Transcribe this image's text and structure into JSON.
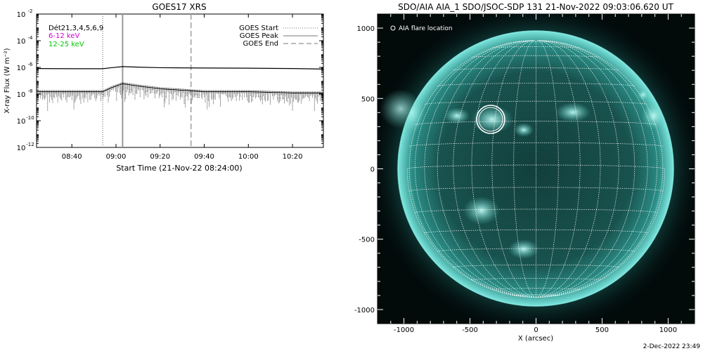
{
  "colors": {
    "background": "#ffffff",
    "plot_line": "#000000",
    "channel_6_12": "#d100d1",
    "channel_12_25": "#00c800",
    "solar_disk": "#1f6b66",
    "solar_active": "#9ff5ee",
    "aia_background": "#020a0a",
    "grid": "#ffffff"
  },
  "timestamp": "2-Dec-2022 23:49",
  "chart_data": [
    {
      "type": "line",
      "title": "GOES17 XRS",
      "xlabel": "Start Time (21-Nov-22 08:24:00)",
      "ylabel": "X-ray Flux (W m⁻²)",
      "x_start": "08:24",
      "x_end": "10:34",
      "x_ticks": [
        "08:40",
        "09:00",
        "09:20",
        "09:40",
        "10:00",
        "10:20"
      ],
      "y_scale": "log",
      "ylim": [
        1e-12,
        0.01
      ],
      "y_ticks": [
        {
          "label": "10",
          "exp": "-12",
          "value": -12
        },
        {
          "label": "10",
          "exp": "-10",
          "value": -10
        },
        {
          "label": "10",
          "exp": "-8",
          "value": -8
        },
        {
          "label": "10",
          "exp": "-6",
          "value": -6
        },
        {
          "label": "10",
          "exp": "-4",
          "value": -4
        },
        {
          "label": "10",
          "exp": "-2",
          "value": -2
        }
      ],
      "labels": {
        "detectors": "Dét21,3,4,5,6,9",
        "channel_low": "6-12 keV",
        "channel_high": "12-25 keV"
      },
      "legend": {
        "position": "top-right",
        "entries": [
          {
            "name": "GOES Start",
            "style": "dotted",
            "time": "08:54"
          },
          {
            "name": "GOES Peak",
            "style": "solid",
            "time": "09:03"
          },
          {
            "name": "GOES End",
            "style": "dashed",
            "time": "09:34"
          }
        ]
      },
      "series": [
        {
          "name": "6-12 keV",
          "points": [
            [
              "08:24",
              8.2e-07
            ],
            [
              "08:40",
              8e-07
            ],
            [
              "08:54",
              8e-07
            ],
            [
              "08:58",
              9.5e-07
            ],
            [
              "09:03",
              1.15e-06
            ],
            [
              "09:10",
              1.05e-06
            ],
            [
              "09:20",
              9.5e-07
            ],
            [
              "09:40",
              9e-07
            ],
            [
              "10:00",
              8.7e-07
            ],
            [
              "10:20",
              8.2e-07
            ],
            [
              "10:34",
              7.5e-07
            ]
          ]
        },
        {
          "name": "12-25 keV",
          "points": [
            [
              "08:24",
              1.5e-08
            ],
            [
              "08:40",
              1.5e-08
            ],
            [
              "08:54",
              1.5e-08
            ],
            [
              "08:58",
              3e-08
            ],
            [
              "09:03",
              6e-08
            ],
            [
              "09:10",
              4e-08
            ],
            [
              "09:20",
              2.5e-08
            ],
            [
              "09:40",
              1.5e-08
            ],
            [
              "10:00",
              1.5e-08
            ],
            [
              "10:20",
              1.2e-08
            ],
            [
              "10:34",
              1.2e-08
            ]
          ]
        }
      ]
    },
    {
      "type": "image",
      "title": "SDO/AIA AIA_1 SDO/JSOC-SDP 131 21-Nov-2022 09:03:06.620 UT",
      "xlabel": "X (arcsec)",
      "ylabel": "",
      "xlim": [
        -1200,
        1200
      ],
      "ylim": [
        -1100,
        1100
      ],
      "x_ticks": [
        -1000,
        -500,
        0,
        500,
        1000
      ],
      "y_ticks": [
        -1000,
        -500,
        0,
        500,
        1000
      ],
      "grid": true,
      "solar_radius_arcsec": 975,
      "legend": {
        "position": "top-left",
        "entries": [
          {
            "name": "AIA flare location",
            "marker": "circle"
          }
        ]
      },
      "flare_location": {
        "x": -345,
        "y": 345,
        "radius": 95
      }
    }
  ]
}
